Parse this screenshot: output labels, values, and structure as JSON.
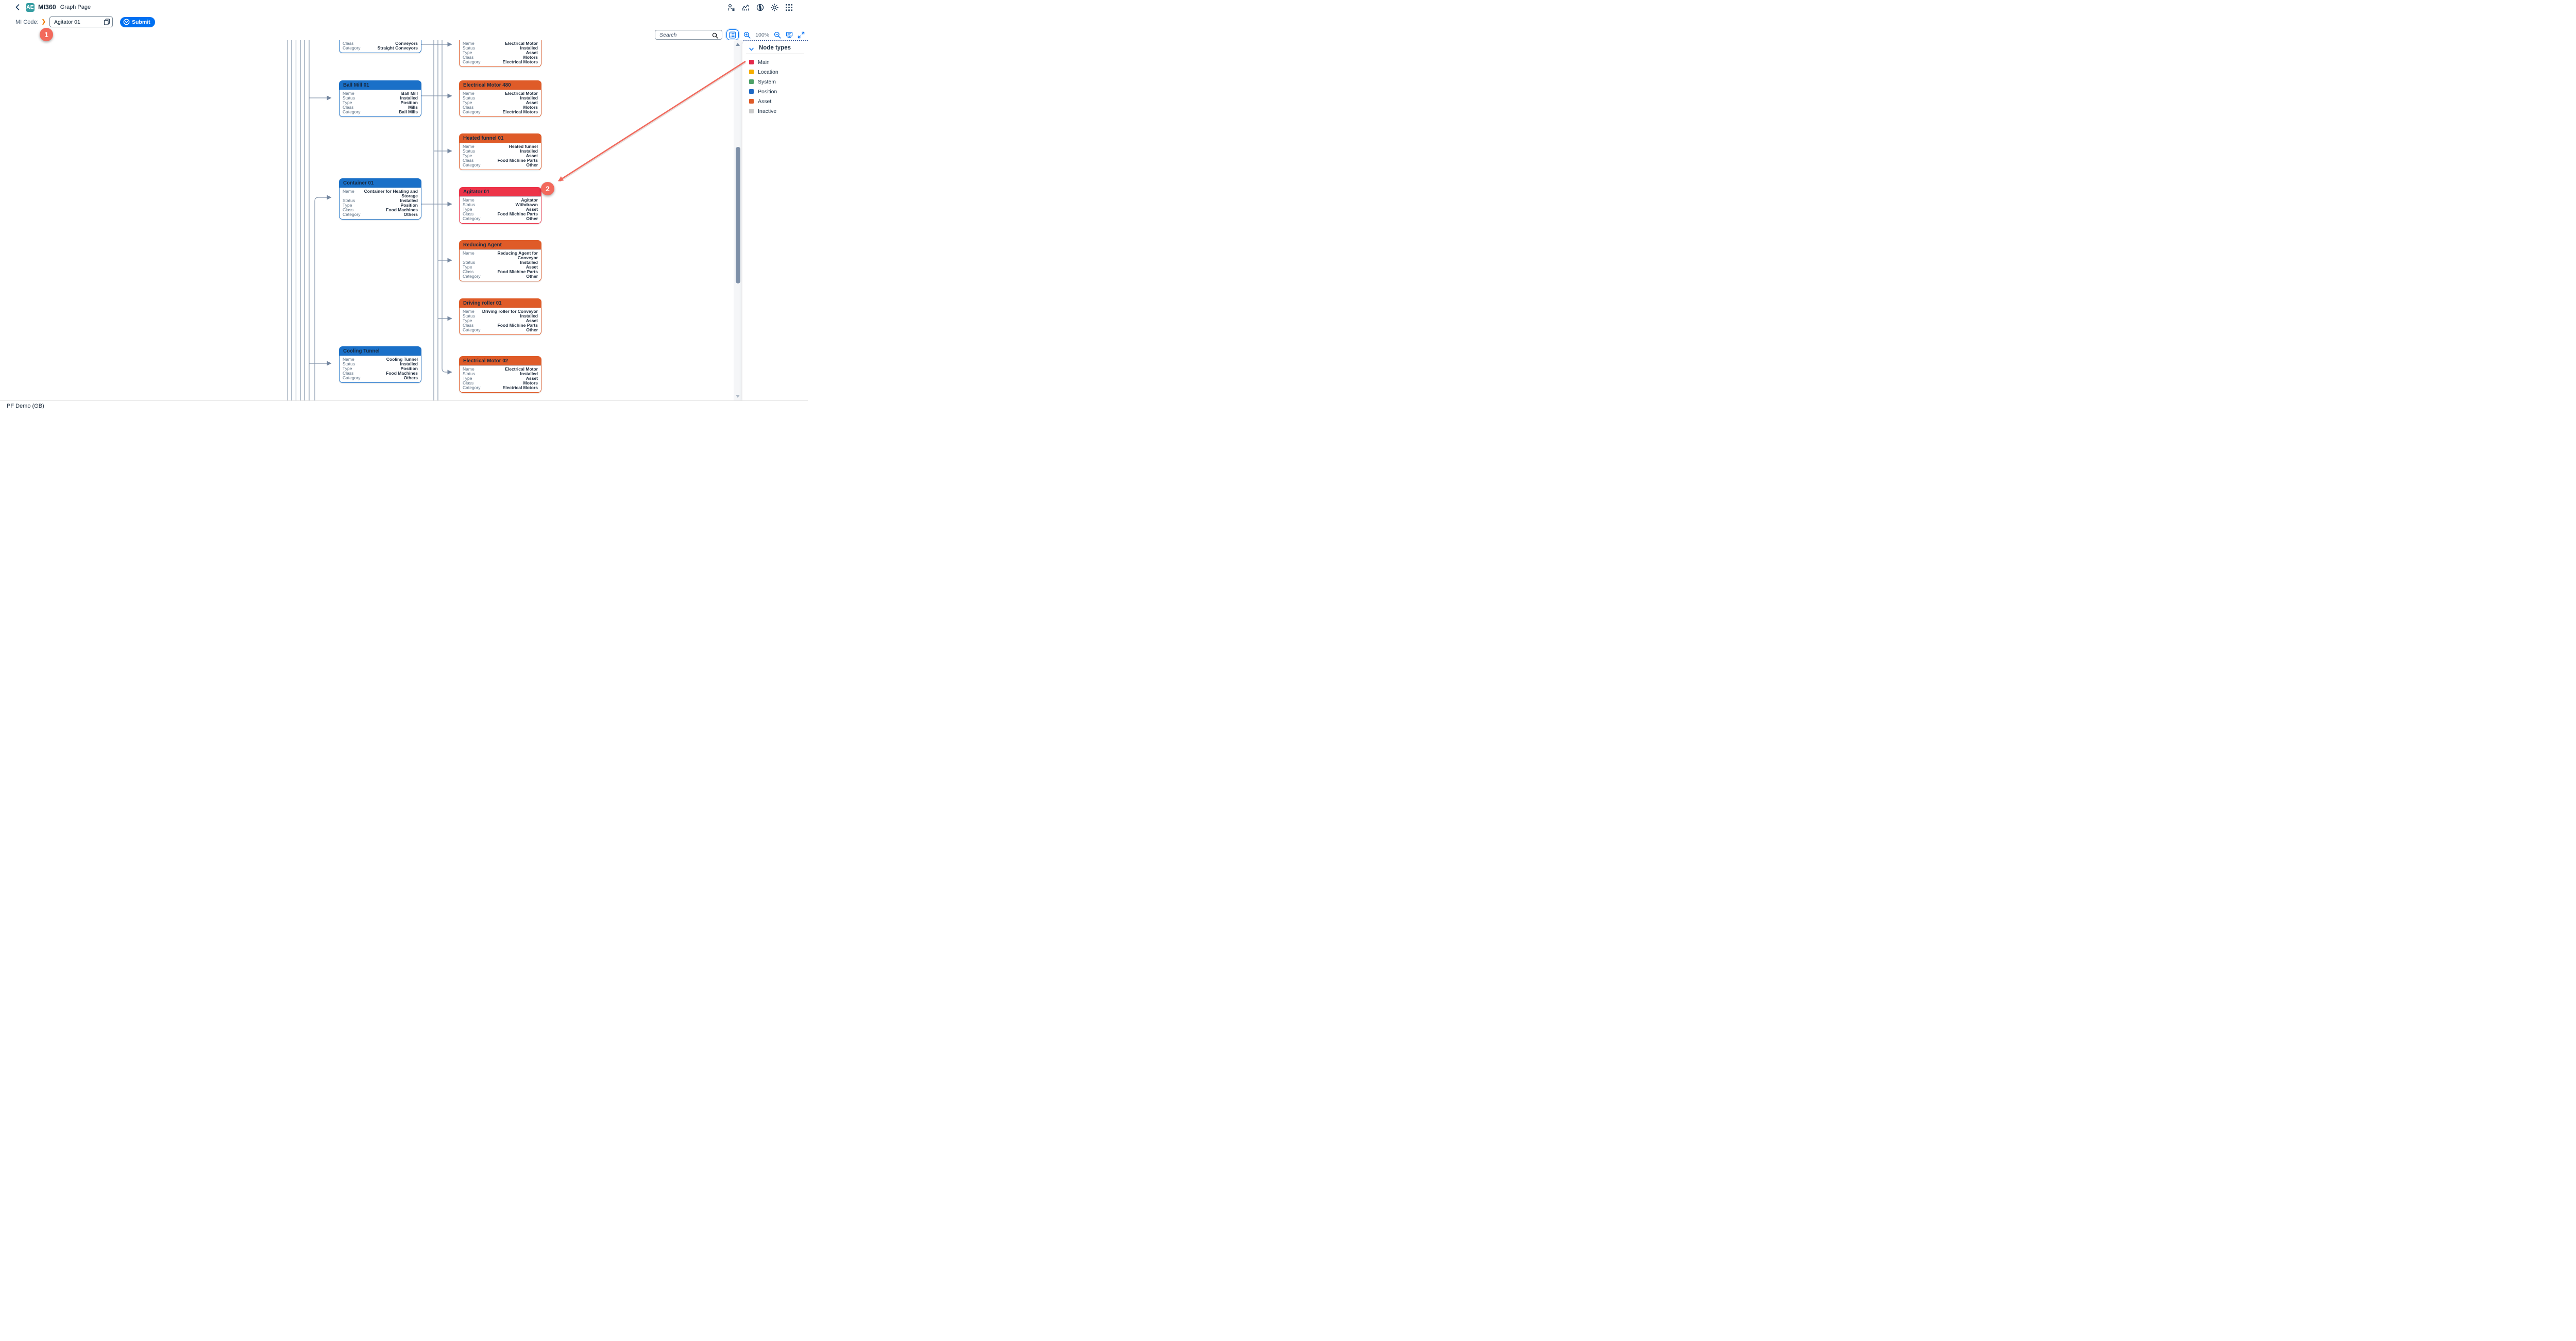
{
  "app": {
    "acronym": "AE",
    "name": "MI360",
    "page": "Graph Page"
  },
  "subheader": {
    "mi_code_label": "MI Code:",
    "mi_code_value": "Agitator 01",
    "submit_label": "Submit"
  },
  "toolbar": {
    "search_placeholder": "Search",
    "zoom_level": "100%"
  },
  "legend": {
    "title": "Node types",
    "items": [
      {
        "label": "Main",
        "color": "#E5294A"
      },
      {
        "label": "Location",
        "color": "#F5AE00"
      },
      {
        "label": "System",
        "color": "#4DA167"
      },
      {
        "label": "Position",
        "color": "#1F69C4"
      },
      {
        "label": "Asset",
        "color": "#DF5B28"
      },
      {
        "label": "Inactive",
        "color": "#CBCBCB"
      }
    ]
  },
  "annotations": {
    "badge_1": "1",
    "badge_2": "2"
  },
  "footer": {
    "text": "PF Demo (GB)"
  },
  "graph": {
    "type_colors": {
      "main": "#ED3449",
      "position": "#1A70C8",
      "asset": "#DF5B28"
    },
    "field_labels": [
      "Name",
      "Status",
      "Type",
      "Class",
      "Category"
    ],
    "nodes": [
      {
        "id": "conveyors",
        "type": "position",
        "clipped": true,
        "title": "",
        "fields": [
          {
            "label": "Class",
            "value": "Conveyors"
          },
          {
            "label": "Category",
            "value": "Straight Conveyors"
          }
        ]
      },
      {
        "id": "electrical-motor-top",
        "type": "asset",
        "clipped": true,
        "title": "",
        "fields": [
          {
            "label": "Name",
            "value": "Electrical Motor"
          },
          {
            "label": "Status",
            "value": "Installed"
          },
          {
            "label": "Type",
            "value": "Asset"
          },
          {
            "label": "Class",
            "value": "Motors"
          },
          {
            "label": "Category",
            "value": "Electrical Motors"
          }
        ]
      },
      {
        "id": "ball-mill-01",
        "type": "position",
        "clipped": false,
        "title": "Ball Mill 01",
        "fields": [
          {
            "label": "Name",
            "value": "Ball Mill"
          },
          {
            "label": "Status",
            "value": "Installed"
          },
          {
            "label": "Type",
            "value": "Position"
          },
          {
            "label": "Class",
            "value": "Mills"
          },
          {
            "label": "Category",
            "value": "Ball Mills"
          }
        ]
      },
      {
        "id": "electrical-motor-480",
        "type": "asset",
        "clipped": false,
        "title": "Electrical Motor 480",
        "fields": [
          {
            "label": "Name",
            "value": "Electrical Motor"
          },
          {
            "label": "Status",
            "value": "Installed"
          },
          {
            "label": "Type",
            "value": "Asset"
          },
          {
            "label": "Class",
            "value": "Motors"
          },
          {
            "label": "Category",
            "value": "Electrical Motors"
          }
        ]
      },
      {
        "id": "heated-funnel-01",
        "type": "asset",
        "clipped": false,
        "title": "Heated funnel 01",
        "fields": [
          {
            "label": "Name",
            "value": "Heated funnel"
          },
          {
            "label": "Status",
            "value": "Installed"
          },
          {
            "label": "Type",
            "value": "Asset"
          },
          {
            "label": "Class",
            "value": "Food Michine Parts"
          },
          {
            "label": "Category",
            "value": "Other"
          }
        ]
      },
      {
        "id": "container-01",
        "type": "position",
        "clipped": false,
        "title": "Container 01",
        "fields": [
          {
            "label": "Name",
            "value": "Container for Heating and Storage"
          },
          {
            "label": "Status",
            "value": "Installed"
          },
          {
            "label": "Type",
            "value": "Position"
          },
          {
            "label": "Class",
            "value": "Food Machines"
          },
          {
            "label": "Category",
            "value": "Others"
          }
        ]
      },
      {
        "id": "agitator-01",
        "type": "main",
        "clipped": false,
        "title": "Agitator 01",
        "fields": [
          {
            "label": "Name",
            "value": "Agitator"
          },
          {
            "label": "Status",
            "value": "Withdrawn"
          },
          {
            "label": "Type",
            "value": "Asset"
          },
          {
            "label": "Class",
            "value": "Food Michine Parts"
          },
          {
            "label": "Category",
            "value": "Other"
          }
        ]
      },
      {
        "id": "reducing-agent",
        "type": "asset",
        "clipped": false,
        "title": "Reducing Agent",
        "fields": [
          {
            "label": "Name",
            "value": "Reducing Agent for Conveyor"
          },
          {
            "label": "Status",
            "value": "Installed"
          },
          {
            "label": "Type",
            "value": "Asset"
          },
          {
            "label": "Class",
            "value": "Food Michine Parts"
          },
          {
            "label": "Category",
            "value": "Other"
          }
        ]
      },
      {
        "id": "driving-roller-01",
        "type": "asset",
        "clipped": false,
        "title": "Driving roller 01",
        "fields": [
          {
            "label": "Name",
            "value": "Driving roller for Conveyor"
          },
          {
            "label": "Status",
            "value": "Installed"
          },
          {
            "label": "Type",
            "value": "Asset"
          },
          {
            "label": "Class",
            "value": "Food Michine Parts"
          },
          {
            "label": "Category",
            "value": "Other"
          }
        ]
      },
      {
        "id": "cooling-tunnel",
        "type": "position",
        "clipped": false,
        "title": "Cooling Tunnel",
        "fields": [
          {
            "label": "Name",
            "value": "Cooling Tunnel"
          },
          {
            "label": "Status",
            "value": "Installed"
          },
          {
            "label": "Type",
            "value": "Position"
          },
          {
            "label": "Class",
            "value": "Food Machines"
          },
          {
            "label": "Category",
            "value": "Others"
          }
        ]
      },
      {
        "id": "electrical-motor-02",
        "type": "asset",
        "clipped": false,
        "title": "Electrical Motor 02",
        "fields": [
          {
            "label": "Name",
            "value": "Electrical Motor"
          },
          {
            "label": "Status",
            "value": "Installed"
          },
          {
            "label": "Type",
            "value": "Asset"
          },
          {
            "label": "Class",
            "value": "Motors"
          },
          {
            "label": "Category",
            "value": "Electrical Motors"
          }
        ]
      }
    ],
    "edges": [
      {
        "from": "conveyors",
        "to": "electrical-motor-top"
      },
      {
        "from": "ball-mill-01",
        "to": "electrical-motor-480"
      },
      {
        "from": "container-01",
        "to": "agitator-01"
      },
      {
        "from": "offscreen",
        "to": "ball-mill-01"
      },
      {
        "from": "offscreen",
        "to": "heated-funnel-01"
      },
      {
        "from": "offscreen",
        "to": "container-01"
      },
      {
        "from": "offscreen",
        "to": "reducing-agent"
      },
      {
        "from": "offscreen",
        "to": "driving-roller-01"
      },
      {
        "from": "offscreen",
        "to": "cooling-tunnel"
      },
      {
        "from": "offscreen",
        "to": "electrical-motor-02"
      }
    ]
  }
}
